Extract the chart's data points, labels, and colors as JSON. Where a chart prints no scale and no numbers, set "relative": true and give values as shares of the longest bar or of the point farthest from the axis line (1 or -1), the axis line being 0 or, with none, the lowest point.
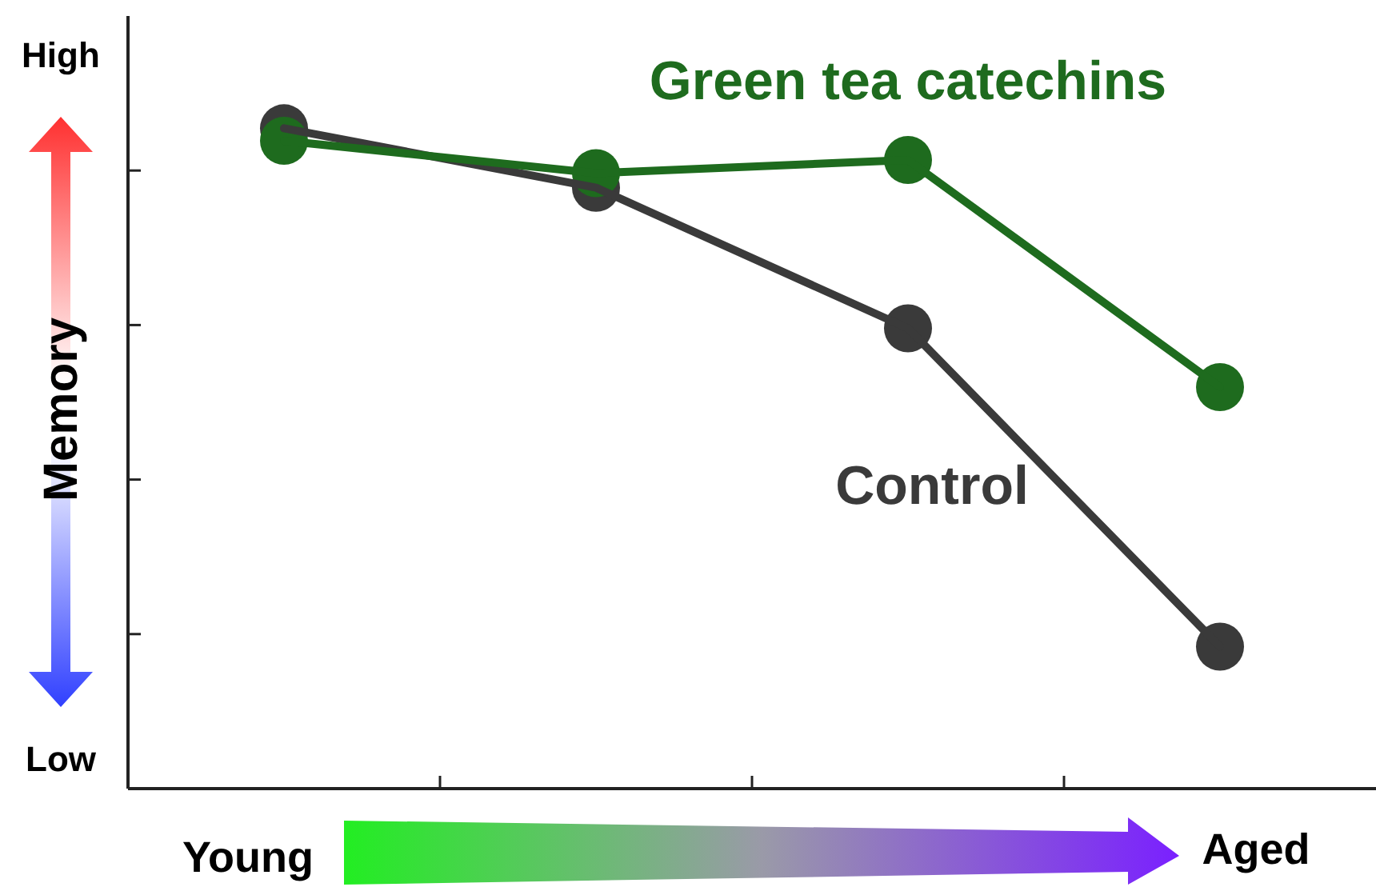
{
  "chart_data": {
    "type": "line",
    "relative": true,
    "ylabel": "Memory",
    "categories": [
      null,
      null,
      null,
      null
    ],
    "series": [
      {
        "name": "Control",
        "color": "#3a3a3a",
        "values": [
          1,
          0.91,
          0.697,
          0.215
        ]
      },
      {
        "name": "Green tea catechins",
        "color": "#1e6b1e",
        "values": [
          0.981,
          0.932,
          0.952,
          0.608
        ]
      }
    ],
    "annotations": [
      "High",
      "Low",
      "Young",
      "Aged"
    ],
    "marker": "circle",
    "line_style": "solid"
  }
}
